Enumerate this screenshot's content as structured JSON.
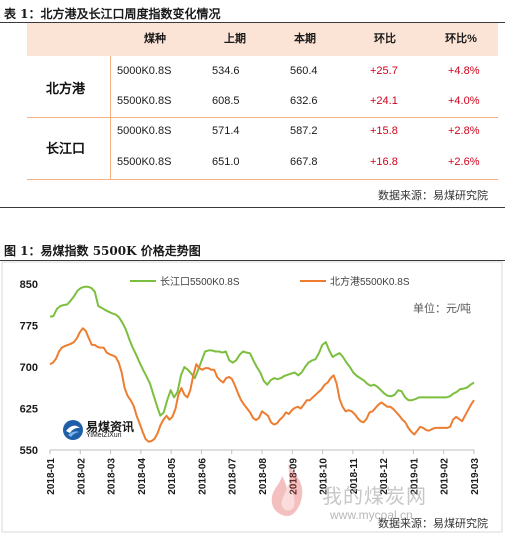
{
  "table": {
    "caption": "表 1：北方港及长江口周度指数变化情况",
    "headers": [
      "煤种",
      "上期",
      "本期",
      "环比",
      "环比%"
    ],
    "groups": [
      {
        "port": "北方港",
        "rows": [
          {
            "coal": "5000K0.8S",
            "prev": "534.6",
            "curr": "560.4",
            "chg": "+25.7",
            "pct": "+4.8%"
          },
          {
            "coal": "5500K0.8S",
            "prev": "608.5",
            "curr": "632.6",
            "chg": "+24.1",
            "pct": "+4.0%"
          }
        ]
      },
      {
        "port": "长江口",
        "rows": [
          {
            "coal": "5000K0.8S",
            "prev": "571.4",
            "curr": "587.2",
            "chg": "+15.8",
            "pct": "+2.8%"
          },
          {
            "coal": "5500K0.8S",
            "prev": "651.0",
            "curr": "667.8",
            "chg": "+16.8",
            "pct": "+2.6%"
          }
        ]
      }
    ],
    "source": "数据来源：易煤研究院"
  },
  "figure": {
    "caption": "图 1：易煤指数 5500K 价格走势图",
    "unit": "单位：元/吨",
    "logo_cn": "易煤资讯",
    "logo_en": "YiMeiZiXun",
    "watermark": "我的煤炭网",
    "watermark_url": "www.mycoal.cn",
    "source": "数据来源：易煤研究院"
  },
  "chart_data": {
    "type": "line",
    "ylim": [
      550,
      850
    ],
    "yticks": [
      550,
      625,
      700,
      775,
      850
    ],
    "xticks": [
      "2018-01",
      "2018-02",
      "2018-03",
      "2018-04",
      "2018-05",
      "2018-06",
      "2018-07",
      "2018-08",
      "2018-09",
      "2018-10",
      "2018-11",
      "2018-12",
      "2019-01",
      "2019-02",
      "2019-03"
    ],
    "legend_placement": "top",
    "series": [
      {
        "name": "长江口5500K0.8S",
        "color": "#7cbf3f",
        "values": [
          791,
          792,
          805,
          810,
          812,
          813,
          820,
          828,
          838,
          843,
          845,
          845,
          843,
          836,
          810,
          807,
          803,
          800,
          797,
          795,
          790,
          780,
          768,
          750,
          735,
          722,
          708,
          695,
          683,
          670,
          650,
          630,
          612,
          618,
          640,
          658,
          645,
          655,
          685,
          700,
          695,
          688,
          680,
          695,
          712,
          728,
          730,
          730,
          728,
          728,
          726,
          728,
          712,
          708,
          712,
          722,
          728,
          726,
          725,
          712,
          700,
          690,
          675,
          668,
          676,
          680,
          678,
          680,
          684,
          686,
          688,
          690,
          685,
          690,
          700,
          708,
          712,
          714,
          725,
          740,
          745,
          730,
          718,
          722,
          725,
          718,
          708,
          700,
          690,
          684,
          680,
          676,
          670,
          666,
          668,
          664,
          658,
          652,
          648,
          647,
          650,
          658,
          656,
          645,
          640,
          640,
          642,
          645,
          645,
          645,
          645,
          645,
          645,
          645,
          645,
          645,
          647,
          652,
          655,
          660,
          661,
          663,
          668,
          672
        ]
      },
      {
        "name": "北方港5500K0.8S",
        "color": "#ed7d31",
        "values": [
          705,
          708,
          715,
          728,
          735,
          738,
          740,
          742,
          745,
          752,
          763,
          770,
          765,
          752,
          740,
          740,
          736,
          735,
          735,
          726,
          723,
          721,
          718,
          708,
          690,
          662,
          648,
          640,
          630,
          612,
          598,
          583,
          570,
          565,
          566,
          570,
          580,
          595,
          605,
          612,
          605,
          610,
          624,
          650,
          662,
          650,
          645,
          658,
          685,
          705,
          698,
          695,
          698,
          698,
          695,
          695,
          682,
          676,
          672,
          680,
          682,
          678,
          666,
          652,
          640,
          632,
          625,
          618,
          608,
          604,
          608,
          620,
          616,
          612,
          600,
          596,
          598,
          605,
          610,
          618,
          615,
          622,
          626,
          628,
          625,
          632,
          640,
          640,
          645,
          650,
          655,
          660,
          668,
          672,
          680,
          685,
          670,
          642,
          628,
          620,
          622,
          620,
          615,
          608,
          602,
          600,
          606,
          618,
          620,
          626,
          632,
          636,
          632,
          628,
          628,
          624,
          618,
          612,
          605,
          600,
          590,
          583,
          578,
          585,
          592,
          590,
          586,
          585,
          588,
          590,
          590,
          590,
          590,
          590,
          592,
          605,
          610,
          606,
          602,
          612,
          622,
          632,
          640
        ]
      }
    ]
  }
}
